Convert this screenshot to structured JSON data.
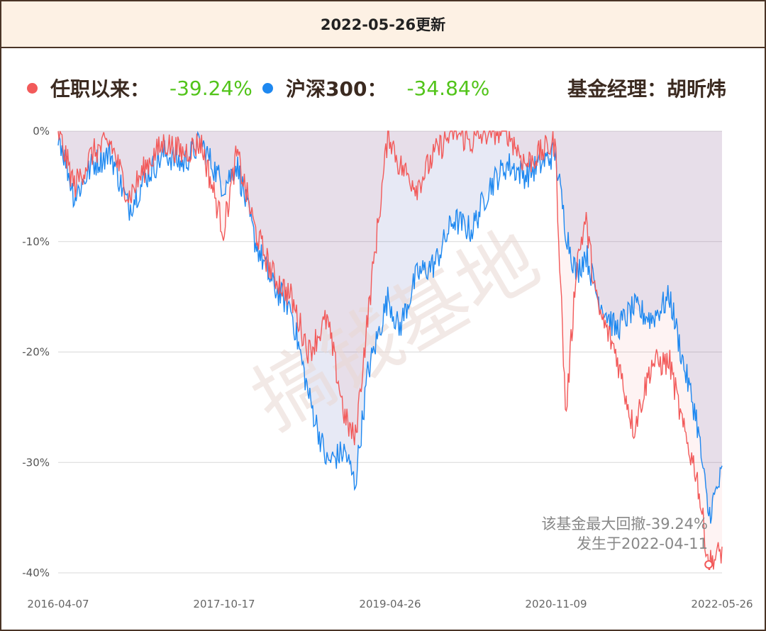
{
  "header": {
    "title": "2022-05-26更新"
  },
  "legend": {
    "fund": {
      "label": "任职以来：",
      "value": "-39.24%",
      "color": "#f25a5a"
    },
    "index": {
      "label": "沪深300：",
      "value": "-34.84%",
      "color": "#1e88f0"
    },
    "manager": "基金经理：胡昕炜"
  },
  "watermark": "搞钱基地",
  "chart_data": {
    "type": "area",
    "title": "",
    "xlabel": "",
    "ylabel": "",
    "ylim": [
      -40,
      0
    ],
    "y_ticks": [
      "0%",
      "-10%",
      "-20%",
      "-30%",
      "-40%"
    ],
    "x_ticks": [
      "2016-04-07",
      "2017-10-17",
      "2019-04-26",
      "2020-11-09",
      "2022-05-26"
    ],
    "x": [
      "2016-04-07",
      "2016-06-01",
      "2016-08-01",
      "2016-10-01",
      "2016-12-01",
      "2017-02-01",
      "2017-04-01",
      "2017-06-01",
      "2017-08-01",
      "2017-10-17",
      "2017-12-01",
      "2018-02-01",
      "2018-04-01",
      "2018-06-01",
      "2018-08-01",
      "2018-10-01",
      "2018-12-01",
      "2019-01-04",
      "2019-02-15",
      "2019-04-26",
      "2019-06-01",
      "2019-08-01",
      "2019-10-01",
      "2019-12-01",
      "2020-02-01",
      "2020-04-01",
      "2020-06-01",
      "2020-08-01",
      "2020-11-09",
      "2020-12-15",
      "2021-01-20",
      "2021-02-20",
      "2021-04-01",
      "2021-06-01",
      "2021-08-01",
      "2021-10-01",
      "2021-12-01",
      "2022-01-15",
      "2022-03-01",
      "2022-04-11",
      "2022-05-26"
    ],
    "series": [
      {
        "name": "任职以来",
        "values": [
          0,
          -5,
          -2,
          -1,
          -6,
          -3,
          -1,
          -2,
          -1,
          -9,
          -2,
          -9,
          -13,
          -15,
          -20,
          -17,
          -26,
          -28,
          -17,
          0,
          -3,
          -5,
          -2,
          0,
          -1,
          0,
          0,
          -3,
          -1,
          -26,
          -12,
          -8,
          -16,
          -20,
          -27,
          -21,
          -21,
          -27,
          -31,
          -39.24,
          -38
        ]
      },
      {
        "name": "沪深300",
        "values": [
          0,
          -6,
          -3,
          -2,
          -7,
          -4,
          -2,
          -3,
          -1,
          -5,
          -3,
          -10,
          -14,
          -16,
          -24,
          -30,
          -29,
          -32,
          -22,
          -15,
          -18,
          -13,
          -12,
          -8,
          -9,
          -5,
          -3,
          -4,
          -2,
          -9,
          -13,
          -11,
          -15,
          -18,
          -16,
          -17,
          -15,
          -21,
          -26,
          -34.84,
          -31
        ]
      }
    ],
    "annotation": {
      "line1": "该基金最大回撤-39.24%",
      "line2": "发生于2022-04-11"
    }
  }
}
